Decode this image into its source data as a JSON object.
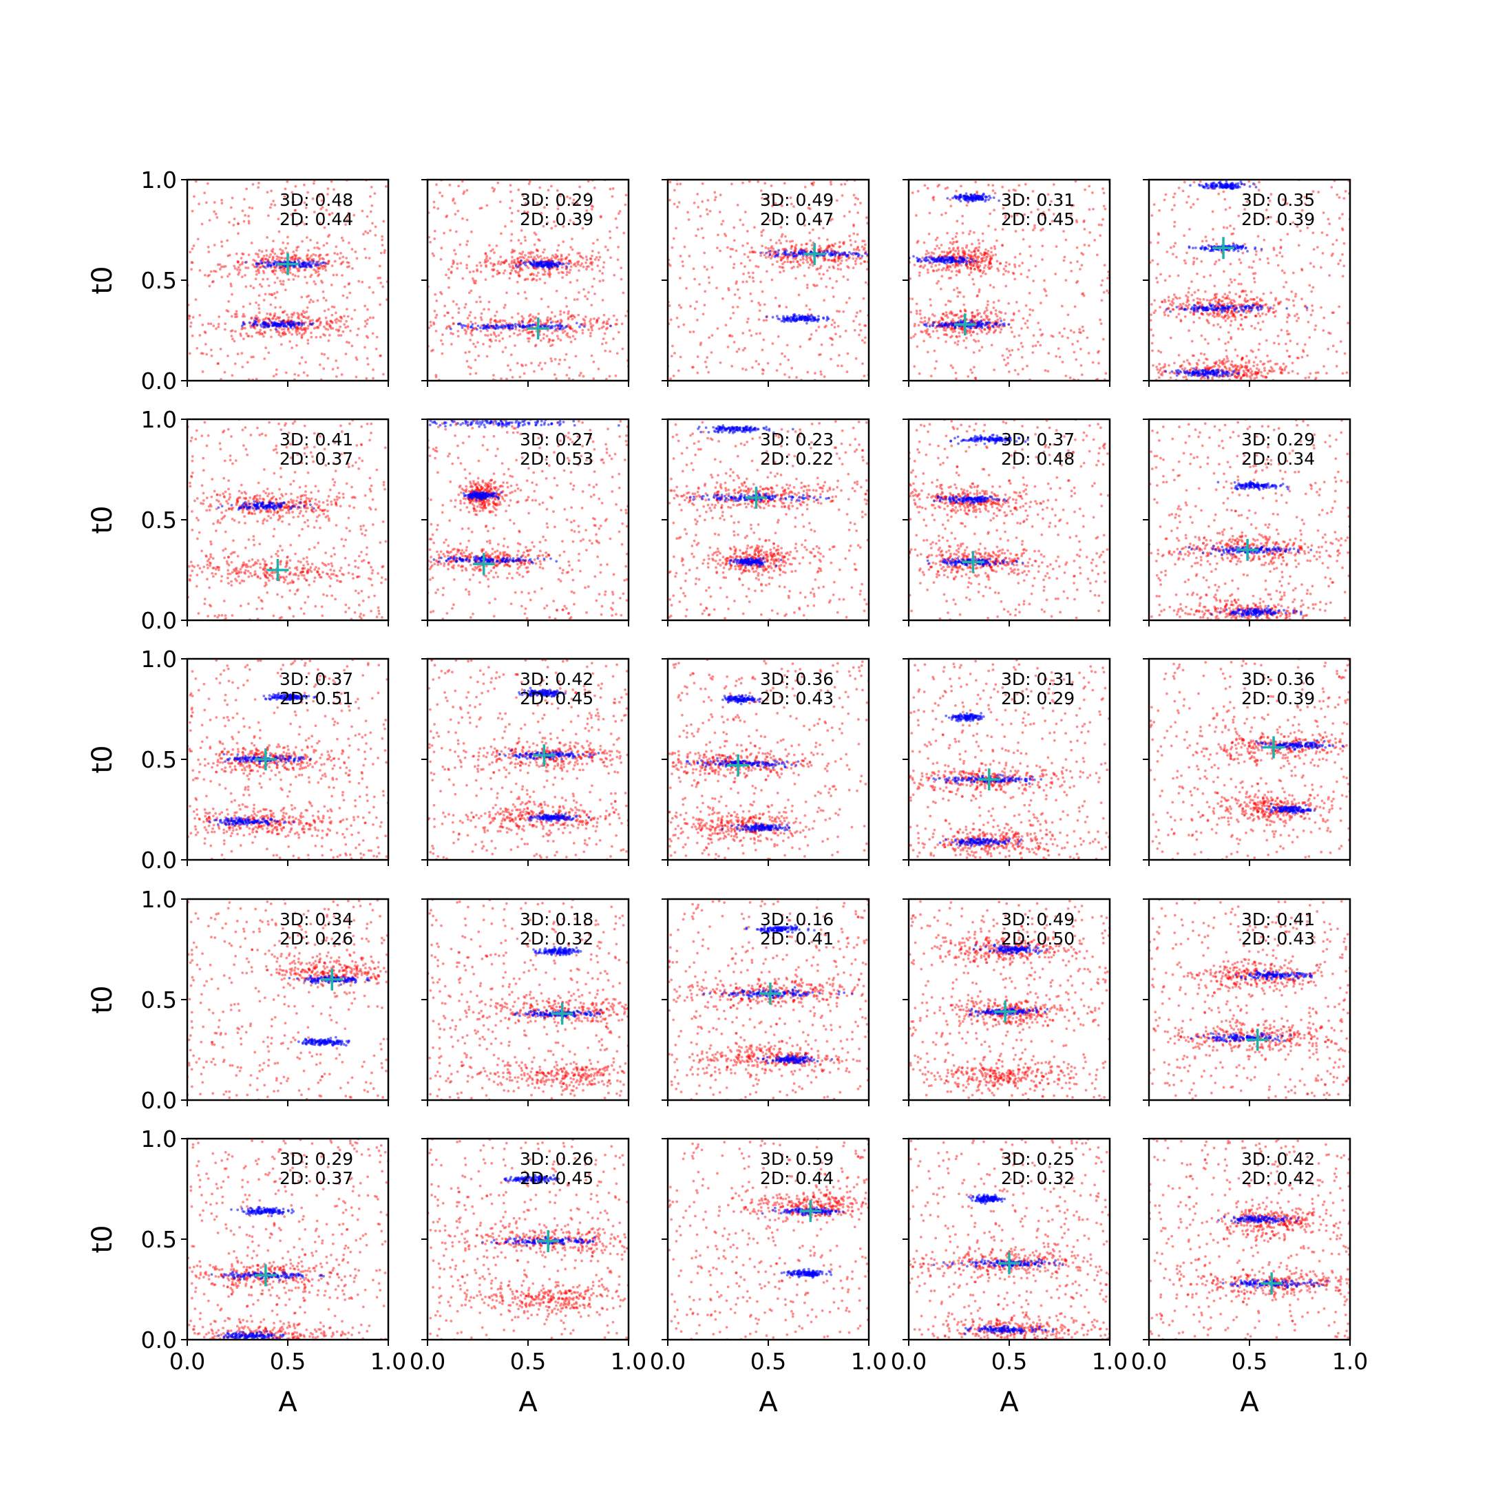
{
  "figure": {
    "xlabel": "A",
    "ylabel": "t0",
    "xticks": [
      "0.0",
      "0.5",
      "1.0"
    ],
    "yticks": [
      "0.0",
      "0.5",
      "1.0"
    ]
  },
  "colors": {
    "red_points": "#ff0000",
    "blue_points": "#0000ff",
    "marker": "#20b2aa"
  },
  "chart_data": [
    {
      "type": "scatter",
      "row": 0,
      "col": 0,
      "stat3d": "3D: 0.48",
      "stat2d": "2D: 0.44",
      "xlim": [
        0,
        1
      ],
      "ylim": [
        0,
        1
      ],
      "marker": [
        0.5,
        0.58
      ],
      "bands": [
        [
          0.58,
          0.3
        ],
        [
          0.28,
          0.3
        ]
      ],
      "blue_bands": [
        [
          0.58,
          0.2
        ],
        [
          0.28,
          0.18
        ]
      ]
    },
    {
      "type": "scatter",
      "row": 0,
      "col": 1,
      "stat3d": "3D: 0.29",
      "stat2d": "2D: 0.39",
      "xlim": [
        0,
        1
      ],
      "ylim": [
        0,
        1
      ],
      "marker": [
        0.55,
        0.26
      ],
      "bands": [
        [
          0.58,
          0.3
        ],
        [
          0.27,
          0.55
        ]
      ],
      "blue_bands": [
        [
          0.58,
          0.14
        ],
        [
          0.27,
          0.45
        ]
      ]
    },
    {
      "type": "scatter",
      "row": 0,
      "col": 2,
      "stat3d": "3D: 0.49",
      "stat2d": "2D: 0.47",
      "xlim": [
        0,
        1
      ],
      "ylim": [
        0,
        1
      ],
      "marker": [
        0.73,
        0.63
      ],
      "bands": [
        [
          0.63,
          0.35
        ]
      ],
      "blue_bands": [
        [
          0.63,
          0.3
        ],
        [
          0.31,
          0.14
        ]
      ]
    },
    {
      "type": "scatter",
      "row": 0,
      "col": 3,
      "stat3d": "3D: 0.31",
      "stat2d": "2D: 0.45",
      "xlim": [
        0,
        1
      ],
      "ylim": [
        0,
        1
      ],
      "marker": [
        0.28,
        0.28
      ],
      "bands": [
        [
          0.6,
          0.2
        ],
        [
          0.28,
          0.25
        ]
      ],
      "blue_bands": [
        [
          0.91,
          0.12
        ],
        [
          0.6,
          0.18
        ],
        [
          0.28,
          0.22
        ]
      ]
    },
    {
      "type": "scatter",
      "row": 0,
      "col": 4,
      "stat3d": "3D: 0.35",
      "stat2d": "2D: 0.39",
      "xlim": [
        0,
        1
      ],
      "ylim": [
        0,
        1
      ],
      "marker": [
        0.37,
        0.66
      ],
      "bands": [
        [
          0.36,
          0.3
        ],
        [
          0.05,
          0.3
        ]
      ],
      "blue_bands": [
        [
          0.97,
          0.16
        ],
        [
          0.66,
          0.16
        ],
        [
          0.36,
          0.3
        ],
        [
          0.04,
          0.2
        ]
      ]
    },
    {
      "type": "scatter",
      "row": 1,
      "col": 0,
      "stat3d": "3D: 0.41",
      "stat2d": "2D: 0.37",
      "xlim": [
        0,
        1
      ],
      "ylim": [
        0,
        1
      ],
      "marker": [
        0.45,
        0.25
      ],
      "bands": [
        [
          0.57,
          0.3
        ],
        [
          0.25,
          0.55
        ]
      ],
      "blue_bands": [
        [
          0.57,
          0.2
        ]
      ]
    },
    {
      "type": "scatter",
      "row": 1,
      "col": 1,
      "stat3d": "3D: 0.27",
      "stat2d": "2D: 0.53",
      "xlim": [
        0,
        1
      ],
      "ylim": [
        0,
        1
      ],
      "marker": [
        0.28,
        0.28
      ],
      "bands": [
        [
          0.3,
          0.3
        ],
        [
          0.62,
          0.1
        ]
      ],
      "blue_bands": [
        [
          0.3,
          0.3
        ],
        [
          0.98,
          0.5
        ],
        [
          0.62,
          0.1
        ]
      ]
    },
    {
      "type": "scatter",
      "row": 1,
      "col": 2,
      "stat3d": "3D: 0.23",
      "stat2d": "2D: 0.22",
      "xlim": [
        0,
        1
      ],
      "ylim": [
        0,
        1
      ],
      "marker": [
        0.44,
        0.61
      ],
      "bands": [
        [
          0.62,
          0.4
        ],
        [
          0.3,
          0.2
        ]
      ],
      "blue_bands": [
        [
          0.95,
          0.2
        ],
        [
          0.61,
          0.4
        ],
        [
          0.29,
          0.1
        ]
      ]
    },
    {
      "type": "scatter",
      "row": 1,
      "col": 3,
      "stat3d": "3D: 0.37",
      "stat2d": "2D: 0.48",
      "xlim": [
        0,
        1
      ],
      "ylim": [
        0,
        1
      ],
      "marker": [
        0.32,
        0.29
      ],
      "bands": [
        [
          0.6,
          0.25
        ],
        [
          0.29,
          0.3
        ]
      ],
      "blue_bands": [
        [
          0.9,
          0.18
        ],
        [
          0.6,
          0.18
        ],
        [
          0.29,
          0.22
        ]
      ]
    },
    {
      "type": "scatter",
      "row": 1,
      "col": 4,
      "stat3d": "3D: 0.29",
      "stat2d": "2D: 0.34",
      "xlim": [
        0,
        1
      ],
      "ylim": [
        0,
        1
      ],
      "marker": [
        0.49,
        0.35
      ],
      "bands": [
        [
          0.35,
          0.35
        ],
        [
          0.04,
          0.3
        ]
      ],
      "blue_bands": [
        [
          0.67,
          0.14
        ],
        [
          0.35,
          0.3
        ],
        [
          0.04,
          0.2
        ]
      ]
    },
    {
      "type": "scatter",
      "row": 2,
      "col": 0,
      "stat3d": "3D: 0.37",
      "stat2d": "2D: 0.51",
      "xlim": [
        0,
        1
      ],
      "ylim": [
        0,
        1
      ],
      "marker": [
        0.39,
        0.5
      ],
      "bands": [
        [
          0.5,
          0.3
        ],
        [
          0.19,
          0.35
        ]
      ],
      "blue_bands": [
        [
          0.81,
          0.14
        ],
        [
          0.5,
          0.22
        ],
        [
          0.19,
          0.22
        ]
      ]
    },
    {
      "type": "scatter",
      "row": 2,
      "col": 1,
      "stat3d": "3D: 0.42",
      "stat2d": "2D: 0.45",
      "xlim": [
        0,
        1
      ],
      "ylim": [
        0,
        1
      ],
      "marker": [
        0.58,
        0.52
      ],
      "bands": [
        [
          0.52,
          0.35
        ],
        [
          0.21,
          0.35
        ]
      ],
      "blue_bands": [
        [
          0.83,
          0.12
        ],
        [
          0.52,
          0.28
        ],
        [
          0.21,
          0.14
        ]
      ]
    },
    {
      "type": "scatter",
      "row": 2,
      "col": 2,
      "stat3d": "3D: 0.36",
      "stat2d": "2D: 0.43",
      "xlim": [
        0,
        1
      ],
      "ylim": [
        0,
        1
      ],
      "marker": [
        0.35,
        0.47
      ],
      "bands": [
        [
          0.48,
          0.35
        ],
        [
          0.17,
          0.3
        ]
      ],
      "blue_bands": [
        [
          0.8,
          0.1
        ],
        [
          0.48,
          0.3
        ],
        [
          0.16,
          0.16
        ]
      ]
    },
    {
      "type": "scatter",
      "row": 2,
      "col": 3,
      "stat3d": "3D: 0.31",
      "stat2d": "2D: 0.29",
      "xlim": [
        0,
        1
      ],
      "ylim": [
        0,
        1
      ],
      "marker": [
        0.4,
        0.4
      ],
      "bands": [
        [
          0.4,
          0.35
        ],
        [
          0.09,
          0.35
        ]
      ],
      "blue_bands": [
        [
          0.71,
          0.1
        ],
        [
          0.4,
          0.3
        ],
        [
          0.09,
          0.2
        ]
      ]
    },
    {
      "type": "scatter",
      "row": 2,
      "col": 4,
      "stat3d": "3D: 0.36",
      "stat2d": "2D: 0.39",
      "xlim": [
        0,
        1
      ],
      "ylim": [
        0,
        1
      ],
      "marker": [
        0.62,
        0.56
      ],
      "bands": [
        [
          0.56,
          0.35
        ],
        [
          0.26,
          0.25
        ]
      ],
      "blue_bands": [
        [
          0.57,
          0.25
        ],
        [
          0.25,
          0.12
        ]
      ]
    },
    {
      "type": "scatter",
      "row": 3,
      "col": 0,
      "stat3d": "3D: 0.34",
      "stat2d": "2D: 0.26",
      "xlim": [
        0,
        1
      ],
      "ylim": [
        0,
        1
      ],
      "marker": [
        0.72,
        0.6
      ],
      "bands": [
        [
          0.64,
          0.25
        ]
      ],
      "blue_bands": [
        [
          0.6,
          0.18
        ],
        [
          0.29,
          0.14
        ]
      ]
    },
    {
      "type": "scatter",
      "row": 3,
      "col": 1,
      "stat3d": "3D: 0.18",
      "stat2d": "2D: 0.32",
      "xlim": [
        0,
        1
      ],
      "ylim": [
        0,
        1
      ],
      "marker": [
        0.67,
        0.43
      ],
      "bands": [
        [
          0.44,
          0.4
        ],
        [
          0.12,
          0.4
        ]
      ],
      "blue_bands": [
        [
          0.74,
          0.12
        ],
        [
          0.43,
          0.25
        ]
      ]
    },
    {
      "type": "scatter",
      "row": 3,
      "col": 2,
      "stat3d": "3D: 0.16",
      "stat2d": "2D: 0.41",
      "xlim": [
        0,
        1
      ],
      "ylim": [
        0,
        1
      ],
      "marker": [
        0.51,
        0.53
      ],
      "bands": [
        [
          0.53,
          0.4
        ],
        [
          0.21,
          0.35
        ]
      ],
      "blue_bands": [
        [
          0.85,
          0.15
        ],
        [
          0.53,
          0.35
        ],
        [
          0.2,
          0.14
        ]
      ]
    },
    {
      "type": "scatter",
      "row": 3,
      "col": 3,
      "stat3d": "3D: 0.49",
      "stat2d": "2D: 0.50",
      "xlim": [
        0,
        1
      ],
      "ylim": [
        0,
        1
      ],
      "marker": [
        0.48,
        0.44
      ],
      "bands": [
        [
          0.75,
          0.3
        ],
        [
          0.44,
          0.3
        ],
        [
          0.12,
          0.3
        ]
      ],
      "blue_bands": [
        [
          0.75,
          0.16
        ],
        [
          0.44,
          0.2
        ]
      ]
    },
    {
      "type": "scatter",
      "row": 3,
      "col": 4,
      "stat3d": "3D: 0.41",
      "stat2d": "2D: 0.43",
      "xlim": [
        0,
        1
      ],
      "ylim": [
        0,
        1
      ],
      "marker": [
        0.54,
        0.3
      ],
      "bands": [
        [
          0.62,
          0.3
        ],
        [
          0.31,
          0.35
        ]
      ],
      "blue_bands": [
        [
          0.62,
          0.22
        ],
        [
          0.31,
          0.24
        ]
      ]
    },
    {
      "type": "scatter",
      "row": 4,
      "col": 0,
      "stat3d": "3D: 0.29",
      "stat2d": "2D: 0.37",
      "xlim": [
        0,
        1
      ],
      "ylim": [
        0,
        1
      ],
      "marker": [
        0.39,
        0.32
      ],
      "bands": [
        [
          0.32,
          0.35
        ],
        [
          0.02,
          0.4
        ]
      ],
      "blue_bands": [
        [
          0.64,
          0.14
        ],
        [
          0.32,
          0.28
        ],
        [
          0.02,
          0.18
        ]
      ]
    },
    {
      "type": "scatter",
      "row": 4,
      "col": 1,
      "stat3d": "3D: 0.26",
      "stat2d": "2D: 0.45",
      "xlim": [
        0,
        1
      ],
      "ylim": [
        0,
        1
      ],
      "marker": [
        0.6,
        0.49
      ],
      "bands": [
        [
          0.49,
          0.4
        ],
        [
          0.2,
          0.35
        ]
      ],
      "blue_bands": [
        [
          0.8,
          0.14
        ],
        [
          0.49,
          0.3
        ]
      ]
    },
    {
      "type": "scatter",
      "row": 4,
      "col": 2,
      "stat3d": "3D: 0.59",
      "stat2d": "2D: 0.44",
      "xlim": [
        0,
        1
      ],
      "ylim": [
        0,
        1
      ],
      "marker": [
        0.71,
        0.64
      ],
      "bands": [
        [
          0.66,
          0.25
        ]
      ],
      "blue_bands": [
        [
          0.64,
          0.18
        ],
        [
          0.33,
          0.12
        ]
      ]
    },
    {
      "type": "scatter",
      "row": 4,
      "col": 3,
      "stat3d": "3D: 0.25",
      "stat2d": "2D: 0.32",
      "xlim": [
        0,
        1
      ],
      "ylim": [
        0,
        1
      ],
      "marker": [
        0.5,
        0.38
      ],
      "bands": [
        [
          0.38,
          0.4
        ],
        [
          0.05,
          0.4
        ]
      ],
      "blue_bands": [
        [
          0.7,
          0.1
        ],
        [
          0.38,
          0.3
        ],
        [
          0.05,
          0.22
        ]
      ]
    },
    {
      "type": "scatter",
      "row": 4,
      "col": 4,
      "stat3d": "3D: 0.42",
      "stat2d": "2D: 0.42",
      "xlim": [
        0,
        1
      ],
      "ylim": [
        0,
        1
      ],
      "marker": [
        0.61,
        0.28
      ],
      "bands": [
        [
          0.59,
          0.25
        ],
        [
          0.28,
          0.4
        ]
      ],
      "blue_bands": [
        [
          0.6,
          0.2
        ],
        [
          0.28,
          0.28
        ]
      ]
    }
  ]
}
